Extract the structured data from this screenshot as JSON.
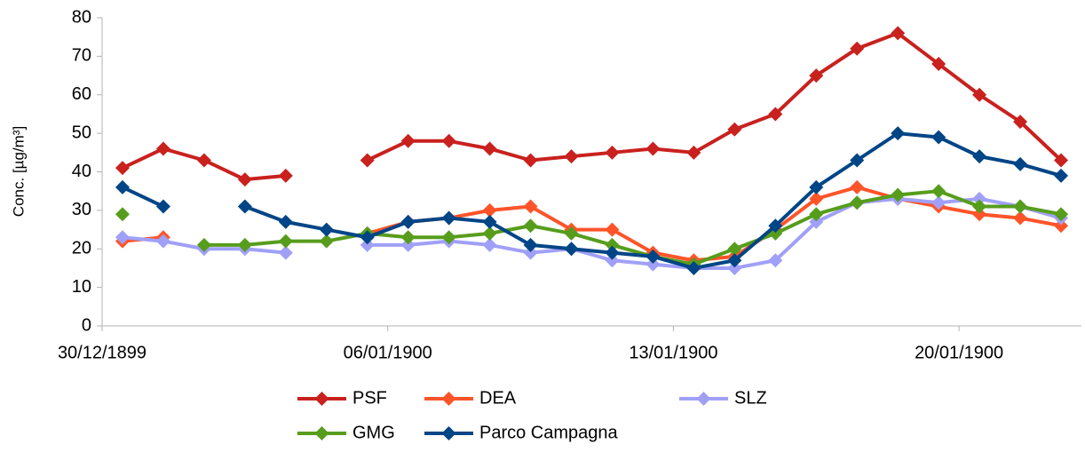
{
  "chart_data": {
    "type": "line",
    "y_label": "Conc. [µg/m³]",
    "categories": [
      "30/12/1899",
      null,
      null,
      null,
      null,
      null,
      null,
      "06/01/1900",
      null,
      null,
      null,
      null,
      null,
      null,
      "13/01/1900",
      null,
      null,
      null,
      null,
      null,
      null,
      "20/01/1900",
      null,
      null
    ],
    "series": [
      {
        "name": "PSF",
        "color": "#c9211e",
        "values": [
          41,
          46,
          43,
          38,
          39,
          null,
          43,
          48,
          48,
          46,
          43,
          44,
          45,
          46,
          45,
          51,
          55,
          65,
          72,
          76,
          68,
          60,
          53,
          43
        ]
      },
      {
        "name": "DEA",
        "color": "#ff5429",
        "values": [
          22,
          23,
          null,
          null,
          null,
          null,
          24,
          27,
          28,
          30,
          31,
          25,
          25,
          19,
          17,
          18,
          25,
          33,
          36,
          33,
          31,
          29,
          28,
          26
        ]
      },
      {
        "name": "SLZ",
        "color": "#a0a0f8",
        "values": [
          23,
          22,
          20,
          20,
          19,
          null,
          21,
          21,
          22,
          21,
          19,
          20,
          17,
          16,
          15,
          15,
          17,
          27,
          32,
          33,
          32,
          33,
          31,
          28
        ]
      },
      {
        "name": "GMG",
        "color": "#579d1c",
        "values": [
          29,
          null,
          21,
          21,
          22,
          22,
          24,
          23,
          23,
          24,
          26,
          24,
          21,
          18,
          16,
          20,
          24,
          29,
          32,
          34,
          35,
          31,
          31,
          29
        ]
      },
      {
        "name": "Parco Campagna",
        "color": "#004586",
        "values": [
          36,
          31,
          null,
          31,
          27,
          25,
          23,
          27,
          28,
          27,
          21,
          20,
          19,
          18,
          15,
          17,
          26,
          36,
          43,
          50,
          49,
          44,
          42,
          39
        ]
      }
    ],
    "ylim": [
      0,
      80
    ],
    "yticks": [
      0,
      10,
      20,
      30,
      40,
      50,
      60,
      70,
      80
    ],
    "grid": false,
    "legend": "bottom"
  }
}
